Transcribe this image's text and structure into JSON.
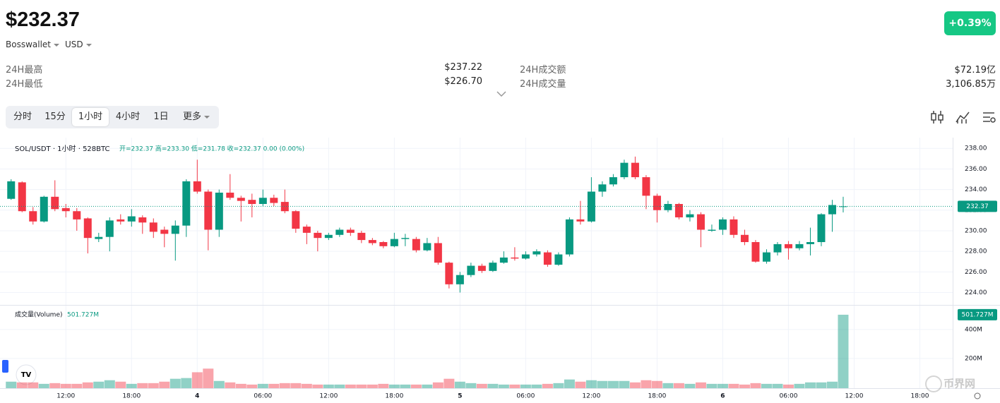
{
  "header": {
    "price": "$232.37",
    "source": "Bosswallet",
    "currency": "USD",
    "change": "+0.39%"
  },
  "stats": [
    {
      "label": "24H最高",
      "value": "$237.22"
    },
    {
      "label": "24H最低",
      "value": "$226.70"
    },
    {
      "label": "24H成交额",
      "value": "$72.19亿"
    },
    {
      "label": "24H成交量",
      "value": "3,106.85万"
    }
  ],
  "tabs": [
    "分时",
    "15分",
    "1小时",
    "4小时",
    "1日",
    "更多"
  ],
  "watermark": "币界网",
  "chart_data": {
    "type": "candlestick",
    "symbol": "SOL/USDT · 1小时 · 528BTC",
    "ohlc_text": "开=232.37 高=233.30 低=231.78 收=232.37 0.00 (0.00%)",
    "volume_title": "成交量(Volume)",
    "volume_text": "501.727M",
    "price_marker": "232.37",
    "volume_marker": "501.727M",
    "up_color": "#089981",
    "down_color": "#f23645",
    "x": [
      7,
      8,
      9,
      10,
      11,
      12,
      13,
      14,
      15,
      16,
      17,
      18,
      19,
      20,
      21,
      22,
      23,
      24,
      25,
      26,
      27,
      28,
      29,
      30,
      31,
      32,
      33,
      34,
      35,
      36,
      37,
      38,
      39,
      40,
      41,
      42,
      43,
      44,
      45,
      46,
      47,
      48,
      49,
      50,
      51,
      52,
      53,
      54,
      55,
      56,
      57,
      58,
      59,
      60,
      61,
      62,
      63,
      64,
      65,
      66,
      67,
      68,
      69,
      70,
      71,
      72,
      73,
      74,
      75,
      76,
      77,
      78,
      79,
      80,
      81,
      82,
      83
    ],
    "open": [
      233.1,
      234.7,
      231.9,
      230.9,
      233.3,
      232.2,
      231.9,
      231.2,
      229.2,
      229.4,
      231.1,
      230.9,
      231.3,
      230.8,
      230.1,
      229.7,
      230.5,
      234.8,
      233.8,
      230.1,
      233.7,
      233.2,
      233.0,
      232.6,
      233.2,
      232.8,
      231.9,
      230.4,
      229.8,
      229.3,
      229.6,
      230.1,
      229.8,
      229.1,
      228.9,
      228.5,
      229.2,
      229.2,
      228.1,
      228.8,
      226.9,
      224.8,
      225.7,
      226.6,
      226.1,
      226.9,
      227.4,
      227.3,
      227.7,
      227.9,
      226.7,
      227.7,
      231.1,
      230.9,
      233.8,
      234.5,
      235.2,
      236.6,
      235.2,
      233.4,
      232.0,
      232.6,
      231.3,
      231.6,
      230.0,
      230.1,
      231.1,
      229.6,
      228.9,
      227.0,
      227.9,
      228.7,
      228.3,
      228.7,
      228.9,
      231.6,
      232.37
    ],
    "high": [
      235.0,
      234.8,
      232.3,
      233.4,
      234.9,
      232.6,
      232.2,
      231.3,
      229.8,
      231.3,
      231.6,
      232.1,
      231.5,
      231.2,
      230.4,
      231.0,
      235.0,
      236.9,
      234.0,
      234.0,
      235.5,
      233.4,
      233.6,
      234.0,
      233.5,
      234.0,
      232.0,
      230.6,
      230.0,
      229.8,
      230.3,
      230.3,
      230.0,
      229.3,
      229.0,
      229.8,
      229.7,
      229.4,
      229.3,
      229.4,
      227.0,
      226.0,
      226.9,
      226.8,
      227.1,
      228.0,
      228.4,
      228.0,
      228.2,
      228.1,
      227.9,
      231.3,
      232.9,
      235.2,
      234.8,
      235.5,
      236.9,
      237.2,
      235.4,
      233.6,
      232.9,
      232.7,
      232.0,
      231.8,
      230.6,
      231.3,
      231.4,
      230.1,
      229.1,
      228.2,
      228.9,
      229.0,
      229.0,
      230.3,
      231.7,
      233.0,
      233.3
    ],
    "low": [
      233.0,
      231.8,
      230.6,
      230.8,
      231.9,
      231.3,
      230.0,
      227.8,
      228.9,
      228.0,
      230.6,
      230.4,
      229.7,
      229.3,
      228.4,
      227.1,
      229.4,
      233.6,
      228.1,
      229.4,
      233.0,
      230.9,
      231.3,
      232.4,
      232.4,
      231.7,
      229.8,
      228.7,
      228.0,
      229.1,
      229.4,
      229.5,
      228.8,
      228.6,
      228.3,
      228.4,
      228.5,
      227.9,
      228.0,
      226.7,
      224.4,
      224.0,
      225.5,
      225.9,
      226.0,
      226.8,
      227.1,
      227.2,
      227.5,
      226.5,
      226.6,
      227.5,
      230.6,
      230.8,
      233.3,
      234.3,
      235.0,
      235.0,
      232.1,
      230.8,
      231.8,
      231.1,
      230.9,
      228.4,
      229.9,
      229.6,
      229.3,
      228.6,
      226.9,
      226.8,
      227.6,
      227.2,
      228.1,
      227.6,
      228.5,
      229.9,
      231.78
    ],
    "close": [
      234.8,
      231.9,
      230.9,
      233.3,
      232.1,
      231.9,
      231.1,
      229.3,
      229.4,
      231.0,
      230.9,
      231.4,
      230.8,
      229.9,
      229.7,
      230.5,
      234.8,
      233.8,
      230.1,
      233.7,
      233.2,
      232.9,
      232.6,
      233.2,
      232.7,
      231.9,
      230.2,
      229.8,
      229.3,
      229.6,
      230.1,
      229.8,
      229.1,
      228.8,
      228.5,
      229.2,
      229.3,
      228.1,
      228.8,
      226.9,
      224.8,
      225.7,
      226.6,
      226.1,
      226.9,
      227.4,
      227.3,
      227.7,
      228.0,
      226.7,
      227.7,
      231.1,
      230.9,
      233.8,
      234.5,
      235.2,
      236.6,
      235.2,
      233.4,
      232.0,
      232.6,
      231.3,
      231.6,
      230.1,
      230.1,
      231.1,
      229.6,
      228.9,
      227.0,
      227.9,
      228.7,
      228.3,
      228.7,
      228.9,
      231.6,
      232.5,
      232.37
    ],
    "volume": [
      40,
      35,
      35,
      25,
      30,
      25,
      25,
      35,
      40,
      50,
      40,
      25,
      30,
      30,
      40,
      60,
      65,
      105,
      130,
      45,
      35,
      25,
      20,
      25,
      25,
      30,
      30,
      25,
      20,
      20,
      20,
      20,
      20,
      20,
      25,
      20,
      20,
      20,
      20,
      35,
      60,
      40,
      30,
      25,
      25,
      20,
      20,
      20,
      20,
      25,
      30,
      55,
      40,
      50,
      45,
      45,
      45,
      35,
      50,
      45,
      30,
      30,
      25,
      35,
      25,
      25,
      25,
      20,
      30,
      25,
      25,
      20,
      25,
      35,
      35,
      40,
      501.727
    ],
    "xlim": [
      6.5,
      93
    ],
    "xticks": [
      {
        "value": 12,
        "label": "12:00"
      },
      {
        "value": 18,
        "label": "18:00"
      },
      {
        "value": 24,
        "label": "4"
      },
      {
        "value": 30,
        "label": "06:00"
      },
      {
        "value": 36,
        "label": "12:00"
      },
      {
        "value": 42,
        "label": "18:00"
      },
      {
        "value": 48,
        "label": "5"
      },
      {
        "value": 54,
        "label": "06:00"
      },
      {
        "value": 60,
        "label": "12:00"
      },
      {
        "value": 66,
        "label": "18:00"
      },
      {
        "value": 72,
        "label": "6"
      },
      {
        "value": 78,
        "label": "06:00"
      },
      {
        "value": 84,
        "label": "12:00"
      },
      {
        "value": 90,
        "label": "18:00"
      }
    ],
    "ylim": [
      222.8,
      238.7
    ],
    "yticks": [
      {
        "value": 224,
        "label": "224.00"
      },
      {
        "value": 226,
        "label": "226.00"
      },
      {
        "value": 228,
        "label": "228.00"
      },
      {
        "value": 230,
        "label": "230.00"
      },
      {
        "value": 232,
        "label": "232.00"
      },
      {
        "value": 234,
        "label": "234.00"
      },
      {
        "value": 236,
        "label": "236.00"
      },
      {
        "value": 238,
        "label": "238.00"
      }
    ],
    "y2lim": [
      0,
      550
    ],
    "y2ticks": [
      {
        "value": 200,
        "label": "200M"
      },
      {
        "value": 400,
        "label": "400M"
      }
    ],
    "grid": true
  }
}
